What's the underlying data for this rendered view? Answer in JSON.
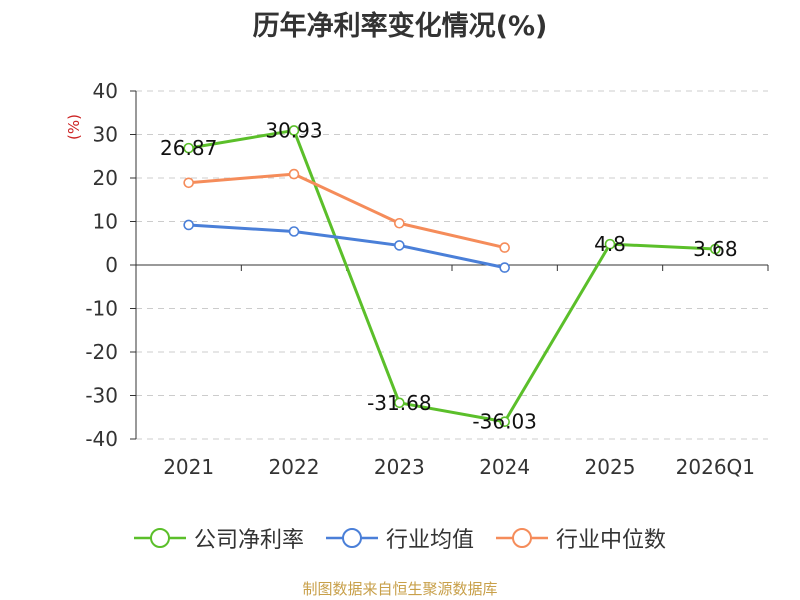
{
  "chart_data": {
    "type": "line",
    "title": "历年净利率变化情况(%)",
    "ylabel": "(%)",
    "xlabel": "",
    "ylim": [
      -40,
      40
    ],
    "yticks": [
      40,
      30,
      20,
      10,
      0,
      -10,
      -20,
      -30,
      -40
    ],
    "categories": [
      "2021",
      "2022",
      "2023",
      "2024",
      "2025",
      "2026Q1"
    ],
    "grid": true,
    "legend_position": "bottom",
    "series": [
      {
        "name": "公司净利率",
        "color": "#5bbf2a",
        "values": [
          26.87,
          30.93,
          -31.68,
          -36.03,
          4.8,
          3.68
        ],
        "labels": [
          "26.87",
          "30.93",
          "-31.68",
          "-36.03",
          "4.8",
          "3.68"
        ]
      },
      {
        "name": "行业均值",
        "color": "#4a7fd8",
        "values": [
          9.2,
          7.7,
          4.5,
          -0.6,
          null,
          null
        ]
      },
      {
        "name": "行业中位数",
        "color": "#f58c5a",
        "values": [
          18.9,
          20.9,
          9.6,
          4.0,
          null,
          null
        ]
      }
    ]
  },
  "footer": {
    "source": "制图数据来自恒生聚源数据库"
  }
}
